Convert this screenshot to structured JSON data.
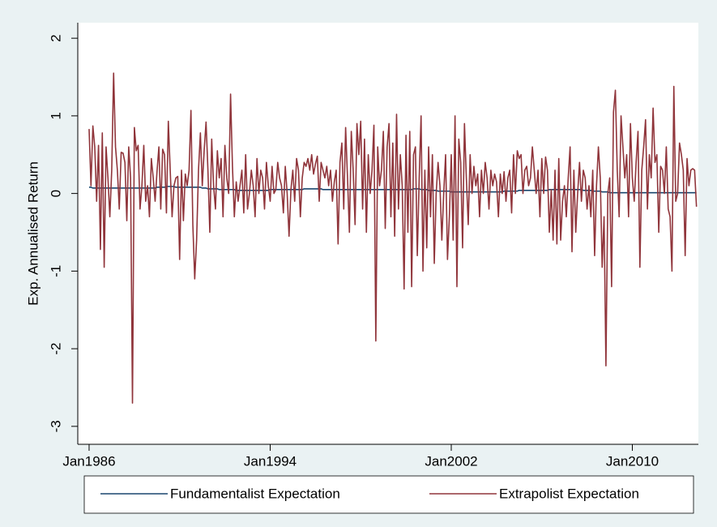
{
  "chart_data": {
    "type": "line",
    "y_label": "Exp. Annualised Return",
    "x": [
      "1986-01",
      "1986-02",
      "1986-03",
      "1986-04",
      "1986-05",
      "1986-06",
      "1986-07",
      "1986-08",
      "1986-09",
      "1986-10",
      "1986-11",
      "1986-12",
      "1987-01",
      "1987-02",
      "1987-03",
      "1987-04",
      "1987-05",
      "1987-06",
      "1987-07",
      "1987-08",
      "1987-09",
      "1987-10",
      "1987-11",
      "1987-12",
      "1988-01",
      "1988-02",
      "1988-03",
      "1988-04",
      "1988-05",
      "1988-06",
      "1988-07",
      "1988-08",
      "1988-09",
      "1988-10",
      "1988-11",
      "1988-12",
      "1989-01",
      "1989-02",
      "1989-03",
      "1989-04",
      "1989-05",
      "1989-06",
      "1989-07",
      "1989-08",
      "1989-09",
      "1989-10",
      "1989-11",
      "1989-12",
      "1990-01",
      "1990-02",
      "1990-03",
      "1990-04",
      "1990-05",
      "1990-06",
      "1990-07",
      "1990-08",
      "1990-09",
      "1990-10",
      "1990-11",
      "1990-12",
      "1991-01",
      "1991-02",
      "1991-03",
      "1991-04",
      "1991-05",
      "1991-06",
      "1991-07",
      "1991-08",
      "1991-09",
      "1991-10",
      "1991-11",
      "1991-12",
      "1992-01",
      "1992-02",
      "1992-03",
      "1992-04",
      "1992-05",
      "1992-06",
      "1992-07",
      "1992-08",
      "1992-09",
      "1992-10",
      "1992-11",
      "1992-12",
      "1993-01",
      "1993-02",
      "1993-03",
      "1993-04",
      "1993-05",
      "1993-06",
      "1993-07",
      "1993-08",
      "1993-09",
      "1993-10",
      "1993-11",
      "1993-12",
      "1994-01",
      "1994-02",
      "1994-03",
      "1994-04",
      "1994-05",
      "1994-06",
      "1994-07",
      "1994-08",
      "1994-09",
      "1994-10",
      "1994-11",
      "1994-12",
      "1995-01",
      "1995-02",
      "1995-03",
      "1995-04",
      "1995-05",
      "1995-06",
      "1995-07",
      "1995-08",
      "1995-09",
      "1995-10",
      "1995-11",
      "1995-12",
      "1996-01",
      "1996-02",
      "1996-03",
      "1996-04",
      "1996-05",
      "1996-06",
      "1996-07",
      "1996-08",
      "1996-09",
      "1996-10",
      "1996-11",
      "1996-12",
      "1997-01",
      "1997-02",
      "1997-03",
      "1997-04",
      "1997-05",
      "1997-06",
      "1997-07",
      "1997-08",
      "1997-09",
      "1997-10",
      "1997-11",
      "1997-12",
      "1998-01",
      "1998-02",
      "1998-03",
      "1998-04",
      "1998-05",
      "1998-06",
      "1998-07",
      "1998-08",
      "1998-09",
      "1998-10",
      "1998-11",
      "1998-12",
      "1999-01",
      "1999-02",
      "1999-03",
      "1999-04",
      "1999-05",
      "1999-06",
      "1999-07",
      "1999-08",
      "1999-09",
      "1999-10",
      "1999-11",
      "1999-12",
      "2000-01",
      "2000-02",
      "2000-03",
      "2000-04",
      "2000-05",
      "2000-06",
      "2000-07",
      "2000-08",
      "2000-09",
      "2000-10",
      "2000-11",
      "2000-12",
      "2001-01",
      "2001-02",
      "2001-03",
      "2001-04",
      "2001-05",
      "2001-06",
      "2001-07",
      "2001-08",
      "2001-09",
      "2001-10",
      "2001-11",
      "2001-12",
      "2002-01",
      "2002-02",
      "2002-03",
      "2002-04",
      "2002-05",
      "2002-06",
      "2002-07",
      "2002-08",
      "2002-09",
      "2002-10",
      "2002-11",
      "2002-12",
      "2003-01",
      "2003-02",
      "2003-03",
      "2003-04",
      "2003-05",
      "2003-06",
      "2003-07",
      "2003-08",
      "2003-09",
      "2003-10",
      "2003-11",
      "2003-12",
      "2004-01",
      "2004-02",
      "2004-03",
      "2004-04",
      "2004-05",
      "2004-06",
      "2004-07",
      "2004-08",
      "2004-09",
      "2004-10",
      "2004-11",
      "2004-12",
      "2005-01",
      "2005-02",
      "2005-03",
      "2005-04",
      "2005-05",
      "2005-06",
      "2005-07",
      "2005-08",
      "2005-09",
      "2005-10",
      "2005-11",
      "2005-12",
      "2006-01",
      "2006-02",
      "2006-03",
      "2006-04",
      "2006-05",
      "2006-06",
      "2006-07",
      "2006-08",
      "2006-09",
      "2006-10",
      "2006-11",
      "2006-12",
      "2007-01",
      "2007-02",
      "2007-03",
      "2007-04",
      "2007-05",
      "2007-06",
      "2007-07",
      "2007-08",
      "2007-09",
      "2007-10",
      "2007-11",
      "2007-12",
      "2008-01",
      "2008-02",
      "2008-03",
      "2008-04",
      "2008-05",
      "2008-06",
      "2008-07",
      "2008-08",
      "2008-09",
      "2008-10",
      "2008-11",
      "2008-12",
      "2009-01",
      "2009-02",
      "2009-03",
      "2009-04",
      "2009-05",
      "2009-06",
      "2009-07",
      "2009-08",
      "2009-09",
      "2009-10",
      "2009-11",
      "2009-12",
      "2010-01",
      "2010-02",
      "2010-03",
      "2010-04",
      "2010-05",
      "2010-06",
      "2010-07",
      "2010-08",
      "2010-09",
      "2010-10",
      "2010-11",
      "2010-12",
      "2011-01",
      "2011-02",
      "2011-03",
      "2011-04",
      "2011-05",
      "2011-06",
      "2011-07",
      "2011-08",
      "2011-09",
      "2011-10",
      "2011-11",
      "2011-12",
      "2012-01",
      "2012-02",
      "2012-03",
      "2012-04",
      "2012-05",
      "2012-06",
      "2012-07",
      "2012-08",
      "2012-09",
      "2012-10",
      "2012-11"
    ],
    "series": [
      {
        "name": "Fundamentalist Expectation",
        "color": "#1a476f",
        "values": [
          0.08,
          0.08,
          0.07,
          0.07,
          0.07,
          0.07,
          0.07,
          0.07,
          0.07,
          0.07,
          0.07,
          0.07,
          0.07,
          0.07,
          0.07,
          0.07,
          0.07,
          0.07,
          0.07,
          0.07,
          0.07,
          0.07,
          0.07,
          0.07,
          0.07,
          0.07,
          0.07,
          0.07,
          0.07,
          0.07,
          0.07,
          0.07,
          0.07,
          0.07,
          0.07,
          0.07,
          0.08,
          0.08,
          0.08,
          0.08,
          0.08,
          0.09,
          0.09,
          0.09,
          0.09,
          0.09,
          0.08,
          0.08,
          0.08,
          0.08,
          0.08,
          0.08,
          0.08,
          0.08,
          0.08,
          0.08,
          0.08,
          0.08,
          0.08,
          0.08,
          0.07,
          0.07,
          0.07,
          0.06,
          0.06,
          0.06,
          0.06,
          0.06,
          0.06,
          0.05,
          0.05,
          0.05,
          0.05,
          0.05,
          0.05,
          0.05,
          0.05,
          0.05,
          0.04,
          0.04,
          0.04,
          0.04,
          0.04,
          0.04,
          0.04,
          0.04,
          0.04,
          0.04,
          0.04,
          0.04,
          0.04,
          0.04,
          0.04,
          0.04,
          0.04,
          0.04,
          0.05,
          0.05,
          0.05,
          0.05,
          0.05,
          0.05,
          0.05,
          0.05,
          0.05,
          0.05,
          0.05,
          0.05,
          0.05,
          0.05,
          0.05,
          0.05,
          0.05,
          0.05,
          0.06,
          0.06,
          0.06,
          0.06,
          0.06,
          0.06,
          0.06,
          0.06,
          0.06,
          0.06,
          0.05,
          0.05,
          0.05,
          0.05,
          0.05,
          0.05,
          0.05,
          0.05,
          0.05,
          0.05,
          0.05,
          0.05,
          0.05,
          0.05,
          0.05,
          0.05,
          0.05,
          0.05,
          0.05,
          0.05,
          0.05,
          0.05,
          0.05,
          0.05,
          0.05,
          0.05,
          0.05,
          0.05,
          0.05,
          0.05,
          0.05,
          0.05,
          0.05,
          0.05,
          0.05,
          0.05,
          0.05,
          0.05,
          0.05,
          0.05,
          0.05,
          0.05,
          0.05,
          0.05,
          0.05,
          0.05,
          0.05,
          0.05,
          0.06,
          0.06,
          0.06,
          0.06,
          0.05,
          0.05,
          0.05,
          0.05,
          0.04,
          0.04,
          0.04,
          0.04,
          0.04,
          0.03,
          0.03,
          0.03,
          0.03,
          0.03,
          0.03,
          0.03,
          0.02,
          0.02,
          0.02,
          0.02,
          0.02,
          0.02,
          0.02,
          0.02,
          0.02,
          0.02,
          0.02,
          0.02,
          0.02,
          0.02,
          0.02,
          0.02,
          0.02,
          0.02,
          0.02,
          0.02,
          0.02,
          0.02,
          0.02,
          0.02,
          0.02,
          0.02,
          0.02,
          0.02,
          0.03,
          0.03,
          0.03,
          0.03,
          0.03,
          0.03,
          0.03,
          0.03,
          0.04,
          0.04,
          0.04,
          0.04,
          0.04,
          0.04,
          0.04,
          0.04,
          0.04,
          0.04,
          0.04,
          0.04,
          0.04,
          0.04,
          0.04,
          0.04,
          0.05,
          0.05,
          0.05,
          0.05,
          0.05,
          0.05,
          0.05,
          0.05,
          0.05,
          0.05,
          0.05,
          0.05,
          0.05,
          0.05,
          0.05,
          0.05,
          0.05,
          0.05,
          0.04,
          0.04,
          0.04,
          0.04,
          0.04,
          0.03,
          0.03,
          0.03,
          0.03,
          0.03,
          0.02,
          0.02,
          0.02,
          0.02,
          0.01,
          0.01,
          0.01,
          0.01,
          0.01,
          0.01,
          0.01,
          0.01,
          0.01,
          0.01,
          0.01,
          0.01,
          0.01,
          0.01,
          0.01,
          0.01,
          0.01,
          0.01,
          0.01,
          0.01,
          0.01,
          0.01,
          0.01,
          0.01,
          0.01,
          0.01,
          0.01,
          0.01,
          0.01,
          0.01,
          0.01,
          0.01,
          0.01,
          0.01,
          0.01,
          0.01,
          0.01,
          0.01,
          0.01,
          0.01,
          0.01,
          0.01,
          0.01,
          0.01,
          0.01,
          0.01,
          0.01
        ]
      },
      {
        "name": "Extrapolist Expectation",
        "color": "#90353b",
        "values": [
          0.83,
          0.1,
          0.87,
          0.6,
          -0.1,
          0.62,
          -0.72,
          0.78,
          -0.95,
          0.6,
          0.2,
          -0.3,
          0.3,
          1.55,
          0.6,
          0.3,
          -0.2,
          0.53,
          0.52,
          0.4,
          -0.35,
          0.6,
          0.2,
          -2.7,
          0.85,
          0.55,
          0.62,
          -0.2,
          0.1,
          0.62,
          -0.1,
          0.1,
          -0.3,
          0.45,
          0.2,
          -0.1,
          0.28,
          0.6,
          -0.2,
          0.57,
          0.5,
          -0.25,
          0.93,
          0.3,
          -0.3,
          0.1,
          0.2,
          0.22,
          -0.85,
          0.3,
          -0.35,
          0.25,
          0.1,
          0.3,
          1.07,
          -0.4,
          -1.1,
          -0.6,
          0.3,
          0.78,
          0.1,
          0.55,
          0.92,
          0.3,
          -0.5,
          0.7,
          0.1,
          -0.2,
          0.55,
          0.2,
          0.45,
          -0.3,
          0.62,
          0.2,
          0.0,
          1.28,
          0.35,
          -0.3,
          0.15,
          -0.1,
          0.1,
          0.3,
          -0.25,
          0.5,
          -0.2,
          0.0,
          0.3,
          0.1,
          -0.3,
          0.45,
          0.0,
          0.3,
          0.2,
          -0.2,
          0.4,
          0.1,
          -0.1,
          0.35,
          0.0,
          0.05,
          0.4,
          0.2,
          0.1,
          -0.25,
          0.35,
          0.0,
          -0.55,
          0.05,
          0.3,
          -0.1,
          0.45,
          0.3,
          -0.3,
          0.2,
          0.4,
          0.35,
          0.45,
          0.3,
          0.5,
          0.25,
          0.38,
          0.48,
          -0.1,
          0.4,
          0.3,
          0.2,
          0.35,
          0.1,
          0.3,
          -0.1,
          0.15,
          0.3,
          -0.65,
          0.4,
          0.65,
          -0.2,
          0.85,
          0.2,
          -0.5,
          0.8,
          0.3,
          -0.4,
          0.9,
          0.5,
          0.93,
          -0.2,
          0.7,
          -0.5,
          0.5,
          0.0,
          0.3,
          0.88,
          -1.9,
          0.6,
          0.1,
          0.3,
          0.8,
          -0.45,
          0.6,
          0.9,
          -0.3,
          0.65,
          -0.55,
          1.02,
          -0.2,
          0.5,
          0.1,
          -1.23,
          0.75,
          -0.5,
          0.8,
          -1.2,
          0.5,
          0.6,
          -0.8,
          0.2,
          1.0,
          -1.0,
          0.3,
          -0.7,
          0.6,
          -0.3,
          0.5,
          -0.9,
          0.0,
          0.4,
          0.1,
          -0.6,
          0.0,
          0.5,
          -0.85,
          -0.3,
          0.5,
          -0.6,
          1.0,
          -1.2,
          0.7,
          0.4,
          -0.7,
          0.9,
          0.2,
          -0.4,
          0.5,
          0.0,
          0.35,
          0.1,
          0.25,
          -0.3,
          0.3,
          0.0,
          0.4,
          0.2,
          -0.2,
          0.3,
          0.1,
          0.25,
          0.15,
          -0.3,
          0.25,
          0.0,
          0.28,
          -0.1,
          0.2,
          0.3,
          -0.25,
          0.5,
          0.0,
          0.55,
          0.45,
          0.5,
          0.0,
          0.3,
          0.35,
          0.1,
          0.2,
          0.6,
          0.3,
          0.0,
          0.3,
          -0.3,
          0.45,
          0.0,
          0.47,
          0.3,
          -0.5,
          0.05,
          -0.6,
          0.3,
          -0.65,
          0.45,
          -0.6,
          -0.1,
          0.1,
          -0.3,
          0.2,
          0.6,
          -0.75,
          0.3,
          -0.5,
          0.0,
          0.4,
          -0.1,
          0.3,
          0.2,
          -0.2,
          0.1,
          -0.3,
          0.3,
          -0.8,
          0.1,
          0.6,
          0.2,
          -0.95,
          -0.3,
          -2.22,
          0.0,
          0.2,
          -1.2,
          1.05,
          1.33,
          0.3,
          -0.3,
          1.0,
          0.6,
          0.2,
          0.5,
          -0.3,
          0.9,
          0.2,
          -0.1,
          0.4,
          0.8,
          -0.95,
          0.3,
          0.6,
          0.95,
          -0.2,
          0.5,
          0.2,
          1.1,
          0.4,
          0.5,
          -0.5,
          0.35,
          0.3,
          0.0,
          0.6,
          -0.2,
          -0.3,
          -1.0,
          1.38,
          -0.1,
          0.0,
          0.65,
          0.5,
          0.3,
          -0.8,
          0.45,
          0.1,
          0.3,
          0.32,
          0.3,
          -0.17
        ]
      }
    ],
    "xlim": [
      "1985-07",
      "2012-12"
    ],
    "xticks": [
      {
        "value": "1986-01",
        "label": "Jan1986"
      },
      {
        "value": "1994-01",
        "label": "Jan1994"
      },
      {
        "value": "2002-01",
        "label": "Jan2002"
      },
      {
        "value": "2010-01",
        "label": "Jan2010"
      }
    ],
    "ylim": [
      -3.2,
      2.2
    ],
    "yticks": [
      -3,
      -2,
      -1,
      0,
      1,
      2
    ],
    "grid": false,
    "legend": "bottom"
  }
}
